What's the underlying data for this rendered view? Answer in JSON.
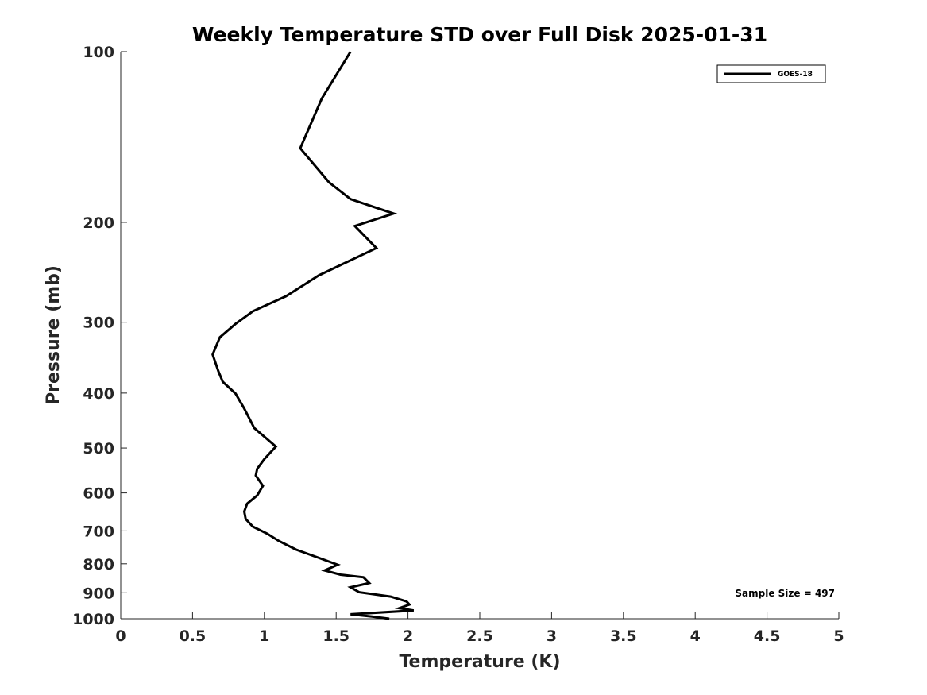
{
  "chart_data": {
    "type": "line",
    "title": "Weekly Temperature STD over Full Disk 2025-01-31",
    "xlabel": "Temperature (K)",
    "ylabel": "Pressure (mb)",
    "xlim": [
      0,
      5
    ],
    "ylim": [
      100,
      1000
    ],
    "y_scale": "log",
    "y_reversed": true,
    "grid": false,
    "legend_position": "top-right",
    "x_ticks": [
      0,
      0.5,
      1,
      1.5,
      2,
      2.5,
      3,
      3.5,
      4,
      4.5,
      5
    ],
    "x_tick_labels": [
      "0",
      "0.5",
      "1",
      "1.5",
      "2",
      "2.5",
      "3",
      "3.5",
      "4",
      "4.5",
      "5"
    ],
    "y_ticks": [
      100,
      200,
      300,
      400,
      500,
      600,
      700,
      800,
      900,
      1000
    ],
    "y_tick_labels": [
      "100",
      "200",
      "300",
      "400",
      "500",
      "600",
      "700",
      "800",
      "900",
      "1000"
    ],
    "series": [
      {
        "name": "GOES-18",
        "color": "#000000",
        "points": [
          [
            1.6,
            100
          ],
          [
            1.4,
            121
          ],
          [
            1.25,
            148
          ],
          [
            1.45,
            170
          ],
          [
            1.6,
            182
          ],
          [
            1.9,
            193
          ],
          [
            1.63,
            203
          ],
          [
            1.78,
            222
          ],
          [
            1.38,
            248
          ],
          [
            1.15,
            270
          ],
          [
            0.92,
            287
          ],
          [
            0.8,
            302
          ],
          [
            0.69,
            319
          ],
          [
            0.64,
            342
          ],
          [
            0.68,
            366
          ],
          [
            0.71,
            382
          ],
          [
            0.8,
            401
          ],
          [
            0.86,
            426
          ],
          [
            0.93,
            461
          ],
          [
            1.08,
            497
          ],
          [
            1.0,
            523
          ],
          [
            0.95,
            544
          ],
          [
            0.94,
            559
          ],
          [
            0.99,
            583
          ],
          [
            0.95,
            606
          ],
          [
            0.88,
            627
          ],
          [
            0.86,
            647
          ],
          [
            0.87,
            667
          ],
          [
            0.92,
            688
          ],
          [
            1.02,
            708
          ],
          [
            1.1,
            729
          ],
          [
            1.22,
            755
          ],
          [
            1.38,
            781
          ],
          [
            1.51,
            803
          ],
          [
            1.42,
            822
          ],
          [
            1.53,
            836
          ],
          [
            1.69,
            845
          ],
          [
            1.73,
            865
          ],
          [
            1.6,
            880
          ],
          [
            1.66,
            898
          ],
          [
            1.88,
            914
          ],
          [
            1.99,
            932
          ],
          [
            2.01,
            944
          ],
          [
            1.94,
            958
          ],
          [
            2.04,
            967
          ],
          [
            1.6,
            982
          ],
          [
            1.75,
            991
          ],
          [
            1.87,
            1000
          ]
        ]
      }
    ],
    "annotation": "Sample Size = 497"
  }
}
